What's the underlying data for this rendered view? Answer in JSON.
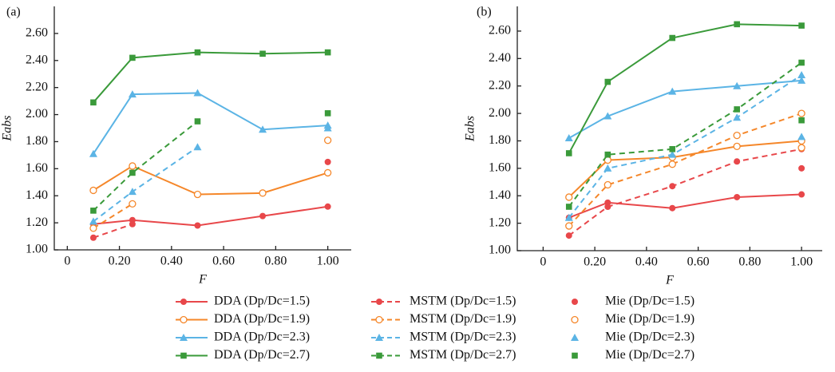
{
  "chart_data": [
    {
      "type": "line",
      "panel_label": "(a)",
      "xlabel": "F",
      "ylabel": "Eabs",
      "xlim": [
        -0.05,
        1.09
      ],
      "ylim": [
        1.0,
        2.8
      ],
      "xticks": [
        0,
        {
          "value": 0.2,
          "label": "0.20"
        },
        {
          "value": 0.4,
          "label": "0.40"
        },
        {
          "value": 0.6,
          "label": "0.60"
        },
        {
          "value": 0.8,
          "label": "0.80"
        },
        {
          "value": 1,
          "label": "1.00"
        }
      ],
      "yticks": [
        {
          "value": 1,
          "label": "1.00"
        },
        {
          "value": 1.2,
          "label": "1.20"
        },
        {
          "value": 1.4,
          "label": "1.40"
        },
        {
          "value": 1.6,
          "label": "1.60"
        },
        {
          "value": 1.8,
          "label": "1.80"
        },
        {
          "value": 2,
          "label": "2.00"
        },
        {
          "value": 2.2,
          "label": "2.20"
        },
        {
          "value": 2.4,
          "label": "2.40"
        },
        {
          "value": 2.6,
          "label": "2.60"
        }
      ],
      "series": [
        {
          "name": "DDA (Dp/Dc=1.5)",
          "color": "#e8474a",
          "line_style": "solid",
          "marker": "circle",
          "x": [
            0.1,
            0.25,
            0.5,
            0.75,
            1.0
          ],
          "values": [
            1.19,
            1.22,
            1.18,
            1.25,
            1.32
          ]
        },
        {
          "name": "DDA (Dp/Dc=1.9)",
          "color": "#f5872a",
          "line_style": "solid",
          "marker": "open-circle",
          "x": [
            0.1,
            0.25,
            0.5,
            0.75,
            1.0
          ],
          "values": [
            1.44,
            1.62,
            1.41,
            1.42,
            1.57
          ]
        },
        {
          "name": "DDA (Dp/Dc=2.3)",
          "color": "#5bb4e5",
          "line_style": "solid",
          "marker": "triangle",
          "x": [
            0.1,
            0.25,
            0.5,
            0.75,
            1.0
          ],
          "values": [
            1.71,
            2.15,
            2.16,
            1.89,
            1.92
          ]
        },
        {
          "name": "DDA (Dp/Dc=2.7)",
          "color": "#3a9a3a",
          "line_style": "solid",
          "marker": "square",
          "x": [
            0.1,
            0.25,
            0.5,
            0.75,
            1.0
          ],
          "values": [
            2.09,
            2.42,
            2.46,
            2.45,
            2.46
          ]
        },
        {
          "name": "MSTM (Dp/Dc=1.5)",
          "color": "#e8474a",
          "line_style": "dashed",
          "marker": "circle",
          "x": [
            0.1,
            0.25
          ],
          "values": [
            1.09,
            1.19
          ]
        },
        {
          "name": "MSTM (Dp/Dc=1.9)",
          "color": "#f5872a",
          "line_style": "dashed",
          "marker": "open-circle",
          "x": [
            0.1,
            0.25
          ],
          "values": [
            1.16,
            1.34
          ]
        },
        {
          "name": "MSTM (Dp/Dc=2.3)",
          "color": "#5bb4e5",
          "line_style": "dashed",
          "marker": "triangle",
          "x": [
            0.1,
            0.25,
            0.5
          ],
          "values": [
            1.21,
            1.43,
            1.76
          ]
        },
        {
          "name": "MSTM (Dp/Dc=2.7)",
          "color": "#3a9a3a",
          "line_style": "dashed",
          "marker": "square",
          "x": [
            0.1,
            0.25,
            0.5
          ],
          "values": [
            1.29,
            1.57,
            1.95
          ]
        },
        {
          "name": "Mie (Dp/Dc=1.5)",
          "color": "#e8474a",
          "line_style": "none",
          "marker": "circle",
          "x": [
            1.0
          ],
          "values": [
            1.65
          ]
        },
        {
          "name": "Mie (Dp/Dc=1.9)",
          "color": "#f5872a",
          "line_style": "none",
          "marker": "open-circle",
          "x": [
            1.0
          ],
          "values": [
            1.81
          ]
        },
        {
          "name": "Mie (Dp/Dc=2.3)",
          "color": "#5bb4e5",
          "line_style": "none",
          "marker": "triangle",
          "x": [
            1.0
          ],
          "values": [
            1.9
          ]
        },
        {
          "name": "Mie (Dp/Dc=2.7)",
          "color": "#3a9a3a",
          "line_style": "none",
          "marker": "square",
          "x": [
            1.0
          ],
          "values": [
            2.01
          ]
        }
      ]
    },
    {
      "type": "line",
      "panel_label": "(b)",
      "xlabel": "F",
      "ylabel": "Eabs",
      "xlim": [
        -0.1,
        1.08
      ],
      "ylim": [
        1.0,
        2.78
      ],
      "xticks": [
        0,
        {
          "value": 0.2,
          "label": "0.20"
        },
        {
          "value": 0.4,
          "label": "0.40"
        },
        {
          "value": 0.6,
          "label": "0.60"
        },
        {
          "value": 0.8,
          "label": "0.80"
        },
        {
          "value": 1,
          "label": "1.00"
        }
      ],
      "yticks": [
        {
          "value": 1,
          "label": "1.00"
        },
        {
          "value": 1.2,
          "label": "1.20"
        },
        {
          "value": 1.4,
          "label": "1.40"
        },
        {
          "value": 1.6,
          "label": "1.60"
        },
        {
          "value": 1.8,
          "label": "1.80"
        },
        {
          "value": 2,
          "label": "2.00"
        },
        {
          "value": 2.2,
          "label": "2.20"
        },
        {
          "value": 2.4,
          "label": "2.40"
        },
        {
          "value": 2.6,
          "label": "2.60"
        }
      ],
      "series": [
        {
          "color": "#e8474a",
          "line_style": "solid",
          "marker": "circle",
          "x": [
            0.1,
            0.25,
            0.5,
            0.75,
            1.0
          ],
          "values": [
            1.24,
            1.35,
            1.31,
            1.39,
            1.41
          ]
        },
        {
          "color": "#f5872a",
          "line_style": "solid",
          "marker": "open-circle",
          "x": [
            0.1,
            0.25,
            0.5,
            0.75,
            1.0
          ],
          "values": [
            1.39,
            1.66,
            1.68,
            1.76,
            1.8
          ]
        },
        {
          "color": "#5bb4e5",
          "line_style": "solid",
          "marker": "triangle",
          "x": [
            0.1,
            0.25,
            0.5,
            0.75,
            1.0
          ],
          "values": [
            1.82,
            1.98,
            2.16,
            2.2,
            2.24
          ]
        },
        {
          "color": "#3a9a3a",
          "line_style": "solid",
          "marker": "square",
          "x": [
            0.1,
            0.25,
            0.5,
            0.75,
            1.0
          ],
          "values": [
            1.71,
            2.23,
            2.55,
            2.65,
            2.64
          ]
        },
        {
          "color": "#e8474a",
          "line_style": "dashed",
          "marker": "circle",
          "x": [
            0.1,
            0.25,
            0.5,
            0.75,
            1.0
          ],
          "values": [
            1.11,
            1.32,
            1.47,
            1.65,
            1.74
          ]
        },
        {
          "color": "#f5872a",
          "line_style": "dashed",
          "marker": "open-circle",
          "x": [
            0.1,
            0.25,
            0.5,
            0.75,
            1.0
          ],
          "values": [
            1.18,
            1.48,
            1.63,
            1.84,
            2.0
          ]
        },
        {
          "color": "#5bb4e5",
          "line_style": "dashed",
          "marker": "triangle",
          "x": [
            0.1,
            0.25,
            0.5,
            0.75,
            1.0
          ],
          "values": [
            1.24,
            1.6,
            1.7,
            1.97,
            2.28
          ]
        },
        {
          "color": "#3a9a3a",
          "line_style": "dashed",
          "marker": "square",
          "x": [
            0.1,
            0.25,
            0.5,
            0.75,
            1.0
          ],
          "values": [
            1.32,
            1.7,
            1.74,
            2.03,
            2.37
          ]
        },
        {
          "color": "#e8474a",
          "line_style": "none",
          "marker": "circle",
          "x": [
            1.0
          ],
          "values": [
            1.6
          ]
        },
        {
          "color": "#f5872a",
          "line_style": "none",
          "marker": "open-circle",
          "x": [
            1.0
          ],
          "values": [
            1.75
          ]
        },
        {
          "color": "#5bb4e5",
          "line_style": "none",
          "marker": "triangle",
          "x": [
            1.0
          ],
          "values": [
            1.83
          ]
        },
        {
          "color": "#3a9a3a",
          "line_style": "none",
          "marker": "square",
          "x": [
            1.0
          ],
          "values": [
            1.95
          ]
        }
      ]
    }
  ]
}
